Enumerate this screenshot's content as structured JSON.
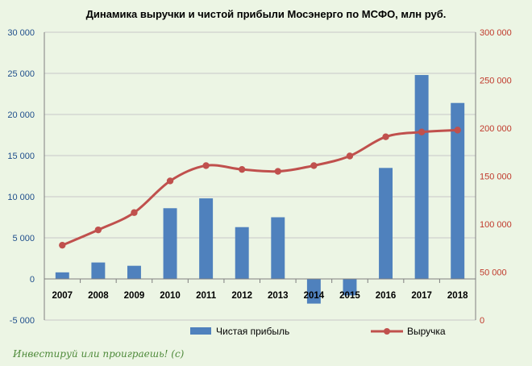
{
  "chart_data": {
    "type": "bar",
    "title": "Динамика выручки и чистой прибыли Мосэнерго по МСФО, млн руб.",
    "categories": [
      "2007",
      "2008",
      "2009",
      "2010",
      "2011",
      "2012",
      "2013",
      "2014",
      "2015",
      "2016",
      "2017",
      "2018"
    ],
    "series": [
      {
        "name": "Чистая прибыль",
        "type": "bar",
        "axis": "left",
        "color": "#4f81bd",
        "values": [
          800,
          2000,
          1600,
          8600,
          9800,
          6300,
          7500,
          -3000,
          -2000,
          13500,
          24800,
          21400
        ]
      },
      {
        "name": "Выручка",
        "type": "line",
        "axis": "right",
        "color": "#c0504d",
        "values": [
          78000,
          94000,
          112000,
          145000,
          161000,
          157000,
          155000,
          161000,
          171000,
          191000,
          196000,
          198000
        ]
      }
    ],
    "y_left": {
      "min": -5000,
      "max": 30000,
      "step": 5000,
      "tick_labels": [
        "-5 000",
        "0",
        "5 000",
        "10 000",
        "15 000",
        "20 000",
        "25 000",
        "30 000"
      ]
    },
    "y_right": {
      "min": 0,
      "max": 300000,
      "step": 50000,
      "tick_labels": [
        "0",
        "50 000",
        "100 000",
        "150 000",
        "200 000",
        "250 000",
        "300 000"
      ]
    },
    "grid": true,
    "legend_position": "bottom"
  },
  "watermark": "Инвестируй или проиграешь! (с)",
  "colors": {
    "background": "#ecf5e4",
    "bar": "#4f81bd",
    "line": "#c0504d",
    "grid": "#c8c8c8"
  }
}
